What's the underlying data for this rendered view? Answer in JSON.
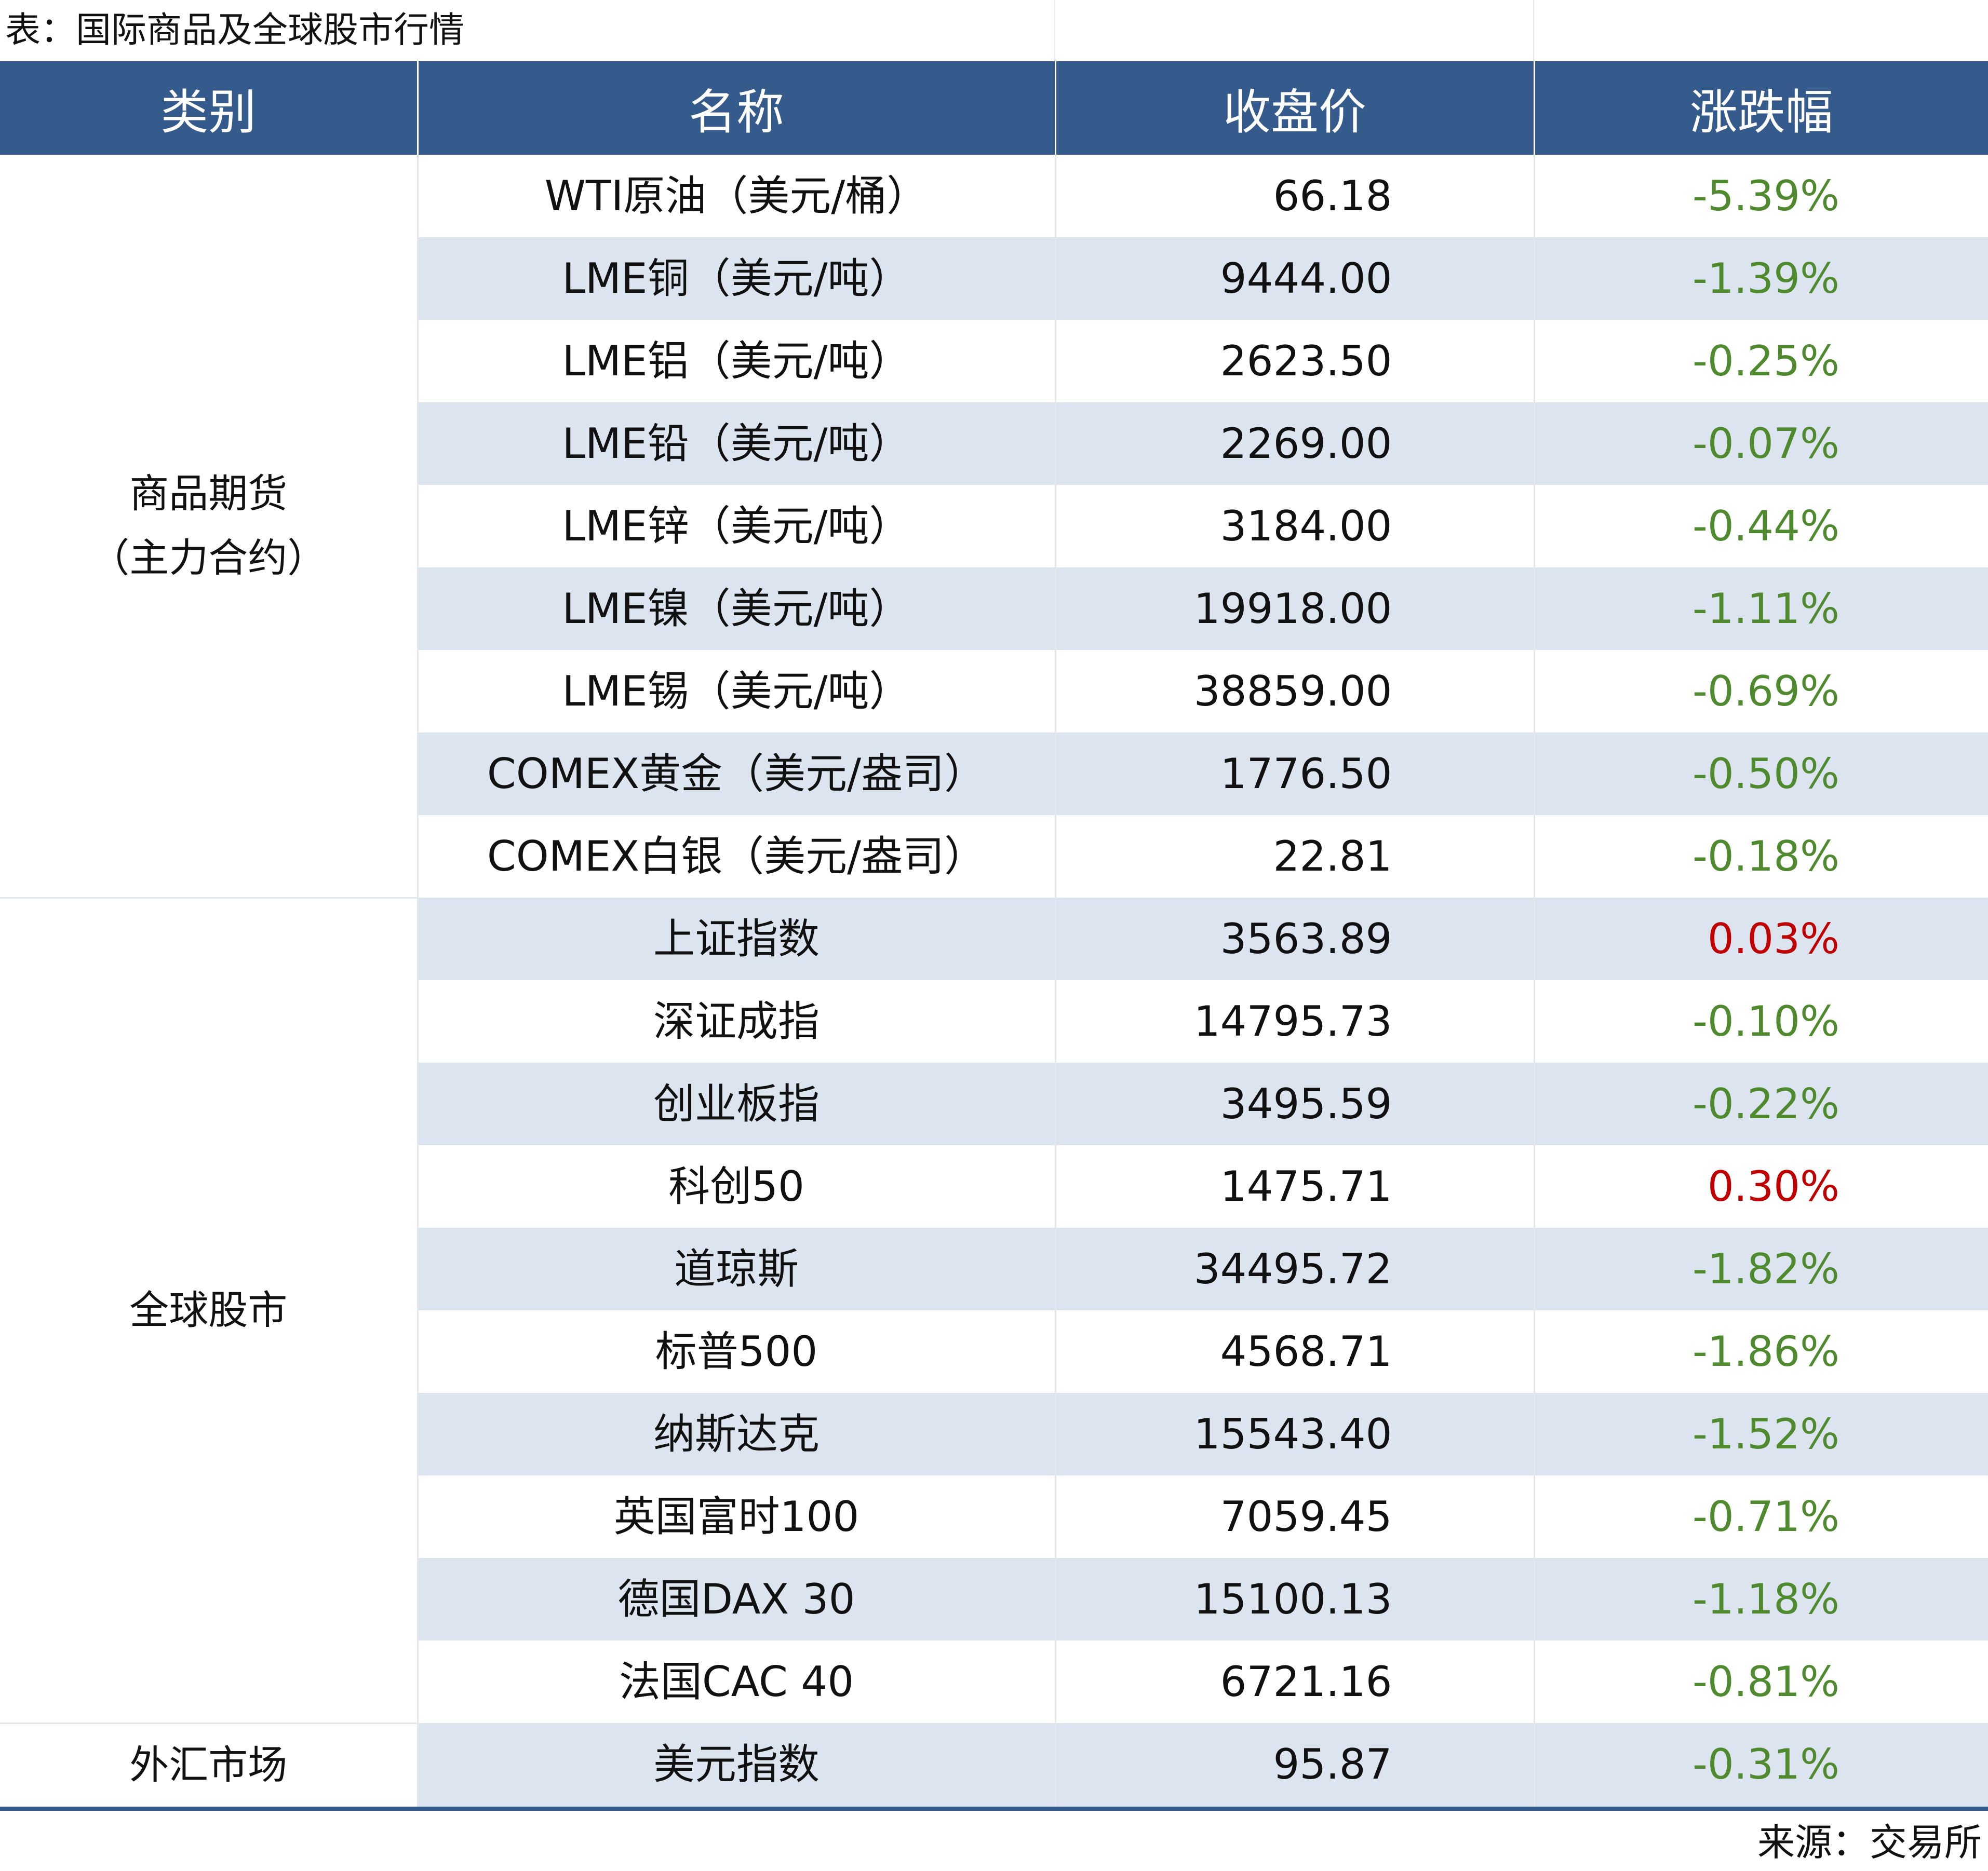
{
  "title": "表：国际商品及全球股市行情",
  "source": "来源：交易所",
  "colors": {
    "header_bg": "#355a8c",
    "stripe": "#dce5ef",
    "down": "#4f8a2f",
    "up": "#c00000"
  },
  "table": {
    "headers": [
      "类别",
      "名称",
      "收盘价",
      "涨跌幅"
    ],
    "groups": [
      {
        "category": [
          "商品期货",
          "（主力合约）"
        ],
        "rows": [
          {
            "name": "WTI原油（美元/桶）",
            "close": "66.18",
            "change": "-5.39%",
            "direction": "down"
          },
          {
            "name": "LME铜（美元/吨）",
            "close": "9444.00",
            "change": "-1.39%",
            "direction": "down"
          },
          {
            "name": "LME铝（美元/吨）",
            "close": "2623.50",
            "change": "-0.25%",
            "direction": "down"
          },
          {
            "name": "LME铅（美元/吨）",
            "close": "2269.00",
            "change": "-0.07%",
            "direction": "down"
          },
          {
            "name": "LME锌（美元/吨）",
            "close": "3184.00",
            "change": "-0.44%",
            "direction": "down"
          },
          {
            "name": "LME镍（美元/吨）",
            "close": "19918.00",
            "change": "-1.11%",
            "direction": "down"
          },
          {
            "name": "LME锡（美元/吨）",
            "close": "38859.00",
            "change": "-0.69%",
            "direction": "down"
          },
          {
            "name": "COMEX黄金（美元/盎司）",
            "close": "1776.50",
            "change": "-0.50%",
            "direction": "down"
          },
          {
            "name": "COMEX白银（美元/盎司）",
            "close": "22.81",
            "change": "-0.18%",
            "direction": "down"
          }
        ]
      },
      {
        "category": [
          "全球股市"
        ],
        "rows": [
          {
            "name": "上证指数",
            "close": "3563.89",
            "change": "0.03%",
            "direction": "up"
          },
          {
            "name": "深证成指",
            "close": "14795.73",
            "change": "-0.10%",
            "direction": "down"
          },
          {
            "name": "创业板指",
            "close": "3495.59",
            "change": "-0.22%",
            "direction": "down"
          },
          {
            "name": "科创50",
            "close": "1475.71",
            "change": "0.30%",
            "direction": "up"
          },
          {
            "name": "道琼斯",
            "close": "34495.72",
            "change": "-1.82%",
            "direction": "down"
          },
          {
            "name": "标普500",
            "close": "4568.71",
            "change": "-1.86%",
            "direction": "down"
          },
          {
            "name": "纳斯达克",
            "close": "15543.40",
            "change": "-1.52%",
            "direction": "down"
          },
          {
            "name": "英国富时100",
            "close": "7059.45",
            "change": "-0.71%",
            "direction": "down"
          },
          {
            "name": "德国DAX 30",
            "close": "15100.13",
            "change": "-1.18%",
            "direction": "down"
          },
          {
            "name": "法国CAC 40",
            "close": "6721.16",
            "change": "-0.81%",
            "direction": "down"
          }
        ]
      },
      {
        "category": [
          "外汇市场"
        ],
        "rows": [
          {
            "name": "美元指数",
            "close": "95.87",
            "change": "-0.31%",
            "direction": "down"
          }
        ]
      }
    ]
  }
}
